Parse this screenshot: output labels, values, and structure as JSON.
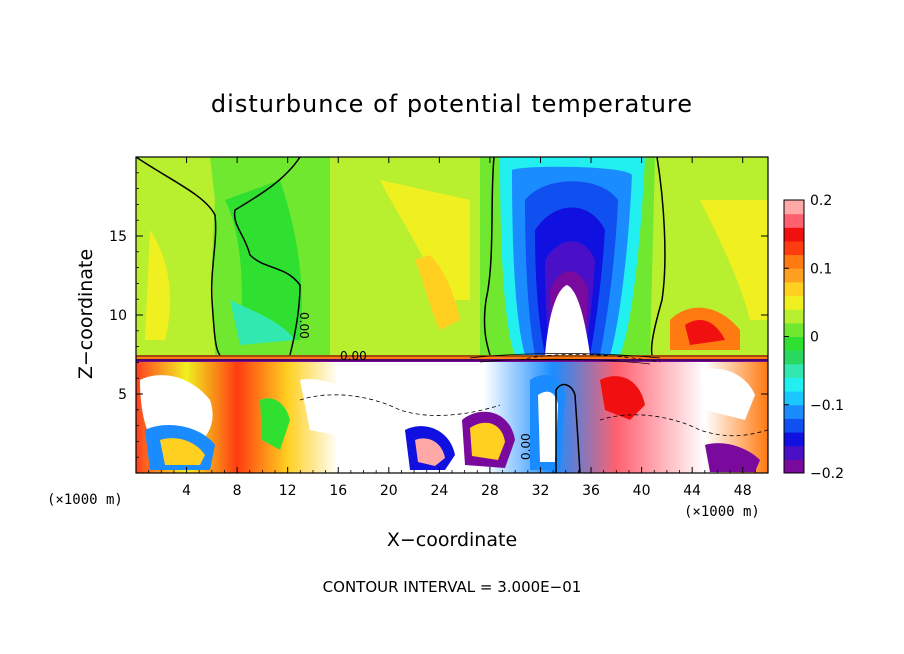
{
  "chart_data": {
    "type": "heatmap",
    "title": "disturbunce of potential temperature",
    "xlabel": "X−coordinate",
    "ylabel": "Z−coordinate",
    "x_unit": "(×1000 m)",
    "x_range": [
      0,
      50
    ],
    "y_range": [
      0,
      20
    ],
    "x_ticks": [
      4,
      8,
      12,
      16,
      20,
      24,
      28,
      32,
      36,
      40,
      44,
      48
    ],
    "y_ticks": [
      5,
      10,
      15
    ],
    "colorbar": {
      "min": -0.2,
      "max": 0.2,
      "ticks": [
        {
          "value": 0.2,
          "label": "0.2"
        },
        {
          "value": 0.1,
          "label": "0.1"
        },
        {
          "value": 0.0,
          "label": "0"
        },
        {
          "value": -0.1,
          "label": "−0.1"
        },
        {
          "value": -0.2,
          "label": "−0.2"
        }
      ],
      "colors": [
        "#7a0a9e",
        "#4a10c8",
        "#1010e0",
        "#1050f0",
        "#1a8cff",
        "#1ac8ff",
        "#22f0f0",
        "#30e8b0",
        "#28d860",
        "#30e030",
        "#70e830",
        "#b8f030",
        "#f0f020",
        "#ffd020",
        "#ffa020",
        "#ff7a10",
        "#ff3c10",
        "#f01010",
        "#ff6070",
        "#ffa8a8"
      ]
    },
    "contour_labels": [
      "0.00",
      "0.00",
      "0.00"
    ],
    "annotation": "CONTOUR INTERVAL = 3.000E−01"
  }
}
